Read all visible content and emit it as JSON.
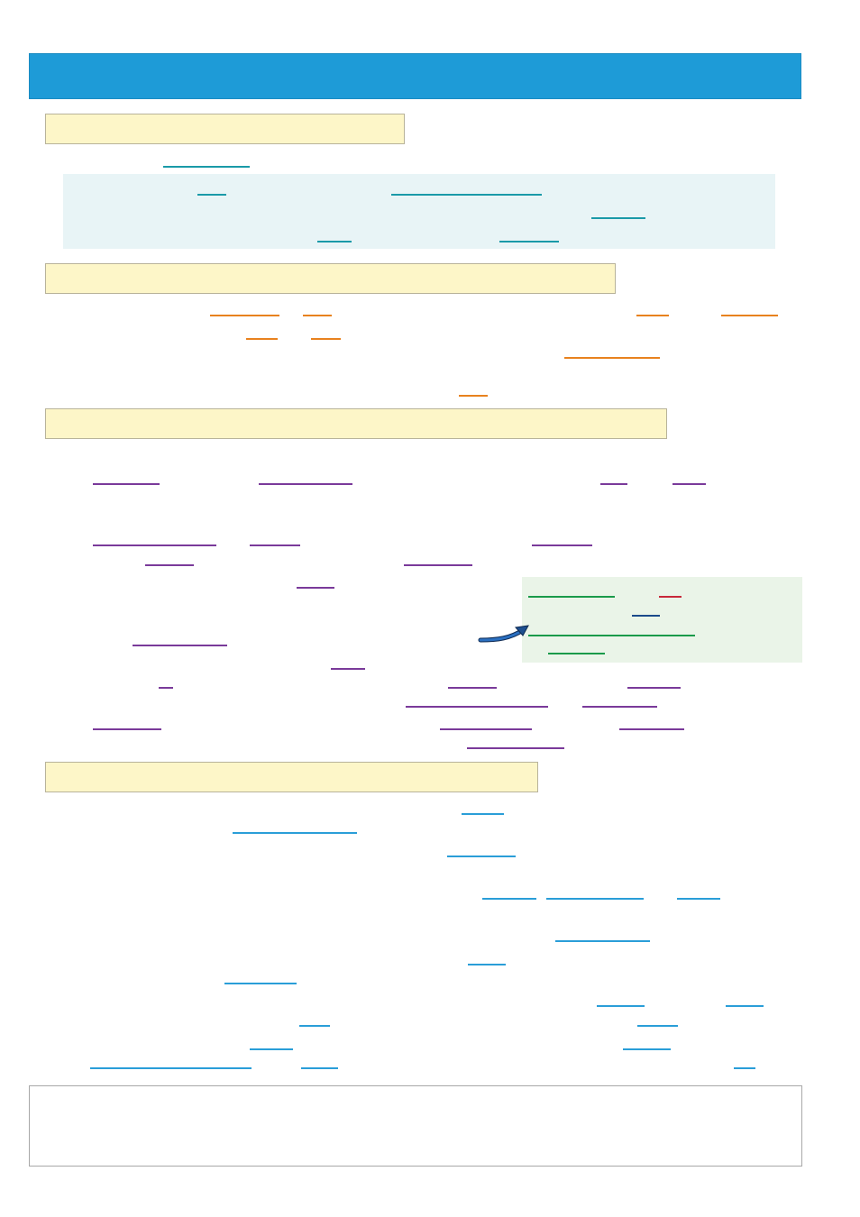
{
  "colors": {
    "title_bar": "#1e9bd7",
    "heading_fill": "#fdf6c8",
    "note_panel_1": "#e8f4f6",
    "note_panel_2": "#eaf4e8",
    "section1_underline": "#1a9aa8",
    "section2_underline": "#e8821e",
    "section3_underline": "#7a3a9a",
    "section4_underline": "#2a9ed8",
    "callout_green": "#1a9a4a",
    "callout_red": "#c8283a",
    "callout_blue": "#1a4a8a",
    "arrow": "#1e4f8f"
  },
  "icons": {
    "callout_arrow": "curved-arrow-icon"
  }
}
